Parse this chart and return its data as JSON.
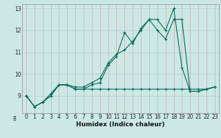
{
  "xlabel": "Humidex (Indice chaleur)",
  "bg_color": "#cce8e4",
  "grid_color": "#aed0cc",
  "line_color": "#006655",
  "xlim": [
    -0.5,
    23.5
  ],
  "ylim": [
    8.2,
    13.2
  ],
  "yticks": [
    9,
    10,
    11,
    12,
    13
  ],
  "ytick_labels": [
    "9",
    "10",
    "11",
    "12",
    "13"
  ],
  "xticks": [
    0,
    1,
    2,
    3,
    4,
    5,
    6,
    7,
    8,
    9,
    10,
    11,
    12,
    13,
    14,
    15,
    16,
    17,
    18,
    19,
    20,
    21,
    22,
    23
  ],
  "series": [
    {
      "x": [
        0,
        1,
        2,
        3,
        4,
        5,
        6,
        7,
        8,
        9,
        10,
        11,
        12,
        13,
        14,
        15,
        16,
        17,
        18,
        19,
        20,
        21,
        22,
        23
      ],
      "y": [
        9.0,
        8.5,
        8.7,
        9.0,
        9.5,
        9.5,
        9.3,
        9.3,
        9.3,
        9.3,
        9.3,
        9.3,
        9.3,
        9.3,
        9.3,
        9.3,
        9.3,
        9.3,
        9.3,
        9.3,
        9.3,
        9.3,
        9.3,
        9.4
      ]
    },
    {
      "x": [
        0,
        1,
        2,
        3,
        4,
        5,
        6,
        7,
        8,
        9,
        10,
        11,
        12,
        13,
        14,
        15,
        16,
        17,
        18,
        19,
        20,
        21,
        22,
        23
      ],
      "y": [
        9.0,
        8.5,
        8.7,
        9.0,
        9.5,
        9.5,
        9.3,
        9.3,
        9.5,
        9.6,
        10.4,
        10.8,
        11.9,
        11.4,
        12.1,
        12.5,
        12.5,
        12.0,
        13.0,
        10.3,
        9.2,
        9.2,
        9.3,
        9.4
      ]
    },
    {
      "x": [
        0,
        1,
        2,
        3,
        4,
        5,
        6,
        7,
        8,
        9,
        10,
        11,
        12,
        13,
        14,
        15,
        16,
        17,
        18,
        19,
        20,
        21,
        22,
        23
      ],
      "y": [
        9.0,
        8.5,
        8.7,
        9.1,
        9.5,
        9.5,
        9.4,
        9.4,
        9.6,
        9.8,
        10.5,
        10.9,
        11.1,
        11.5,
        12.0,
        12.5,
        12.0,
        11.6,
        12.5,
        12.5,
        9.2,
        9.2,
        9.3,
        9.4
      ]
    }
  ]
}
